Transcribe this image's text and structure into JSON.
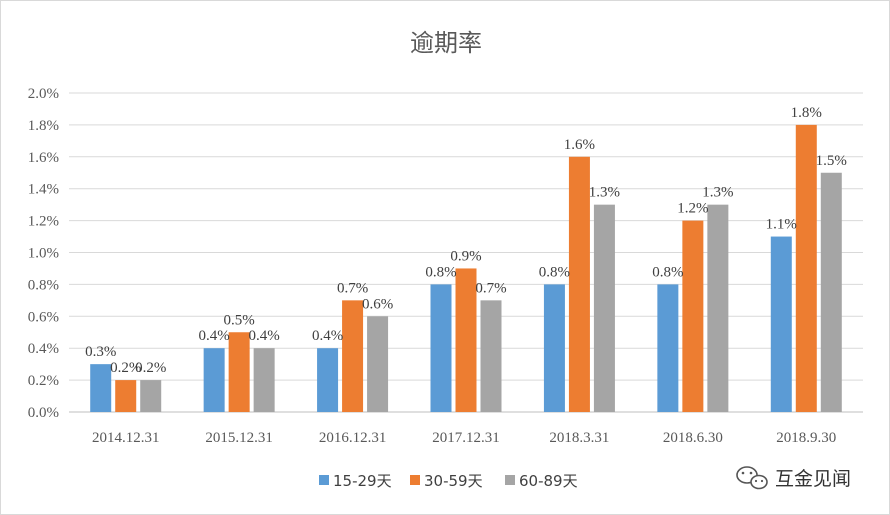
{
  "chart_data": {
    "type": "bar",
    "title": "逾期率",
    "categories": [
      "2014.12.31",
      "2015.12.31",
      "2016.12.31",
      "2017.12.31",
      "2018.3.31",
      "2018.6.30",
      "2018.9.30"
    ],
    "series": [
      {
        "name": "15-29天",
        "values": [
          0.3,
          0.4,
          0.4,
          0.8,
          0.8,
          0.8,
          1.1
        ],
        "color": "#5b9bd5"
      },
      {
        "name": "30-59天",
        "values": [
          0.2,
          0.5,
          0.7,
          0.9,
          1.6,
          1.2,
          1.8
        ],
        "color": "#ed7d31"
      },
      {
        "name": "60-89天",
        "values": [
          0.2,
          0.4,
          0.6,
          0.7,
          1.3,
          1.3,
          1.5
        ],
        "color": "#a5a5a5"
      }
    ],
    "data_labels": [
      [
        "0.3%",
        "0.4%",
        "0.4%",
        "0.8%",
        "0.8%",
        "0.8%",
        "1.1%"
      ],
      [
        "0.2%",
        "0.5%",
        "0.7%",
        "0.9%",
        "1.6%",
        "1.2%",
        "1.8%"
      ],
      [
        "0.2%",
        "0.4%",
        "0.6%",
        "0.7%",
        "1.3%",
        "1.3%",
        "1.5%"
      ]
    ],
    "ylim": [
      0,
      2.0
    ],
    "yticks": [
      "0.0%",
      "0.2%",
      "0.4%",
      "0.6%",
      "0.8%",
      "1.0%",
      "1.2%",
      "1.4%",
      "1.6%",
      "1.8%",
      "2.0%"
    ],
    "xlabel": "",
    "ylabel": "",
    "grid": true,
    "legend_position": "bottom"
  },
  "watermark": {
    "icon": "wechat-icon",
    "text": "互金见闻"
  }
}
